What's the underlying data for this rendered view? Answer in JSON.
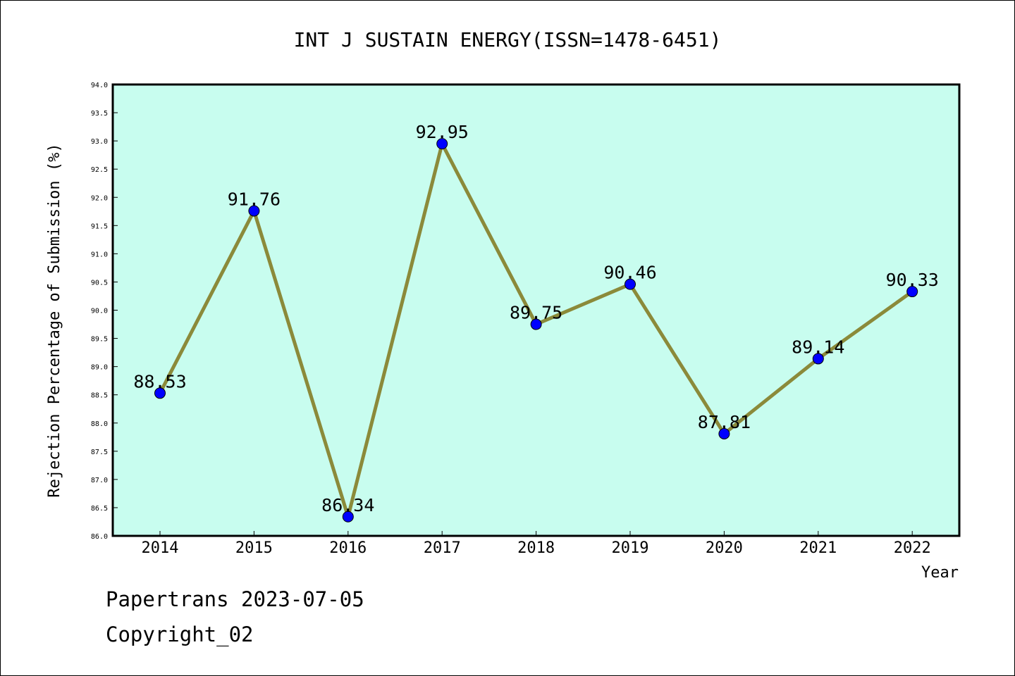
{
  "chart_data": {
    "type": "line",
    "title": "INT J SUSTAIN ENERGY(ISSN=1478-6451)",
    "xlabel": "Year",
    "ylabel": "Rejection Percentage of Submission (%)",
    "x": [
      "2014",
      "2015",
      "2016",
      "2017",
      "2018",
      "2019",
      "2020",
      "2021",
      "2022"
    ],
    "values": [
      88.53,
      91.76,
      86.34,
      92.95,
      89.75,
      90.46,
      87.81,
      89.14,
      90.33
    ],
    "data_labels": [
      "88.53",
      "91.76",
      "86.34",
      "92.95",
      "89.75",
      "90.46",
      "87.81",
      "89.14",
      "90.33"
    ],
    "ylim": [
      86.0,
      94.0
    ],
    "yticks": [
      "86.0",
      "86.5",
      "87.0",
      "87.5",
      "88.0",
      "88.5",
      "89.0",
      "89.5",
      "90.0",
      "90.5",
      "91.0",
      "91.5",
      "92.0",
      "92.5",
      "93.0",
      "93.5",
      "94.0"
    ],
    "grid": false,
    "colors": {
      "plot_background": "#c8fdef",
      "line": "#8b8a3a",
      "marker": "#0000ff"
    }
  },
  "footer": {
    "line1": "Papertrans 2023-07-05",
    "line2": "Copyright_02"
  }
}
